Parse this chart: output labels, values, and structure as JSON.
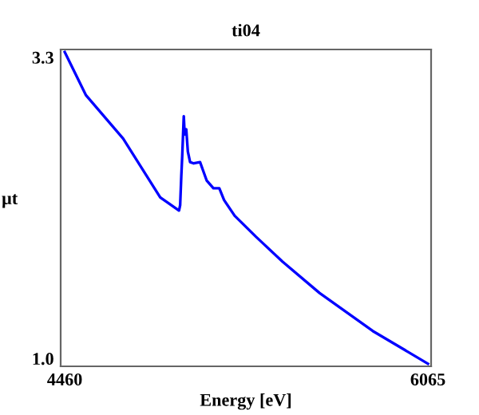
{
  "chart_data": {
    "type": "line",
    "title": "ti04",
    "xlabel": "Energy [eV]",
    "ylabel": "µt",
    "x": [
      4460,
      4554,
      4718,
      4882,
      4965,
      4970,
      4975,
      4979,
      4986,
      4990,
      4997,
      5004,
      5014,
      5030,
      5058,
      5087,
      5117,
      5143,
      5164,
      5211,
      5305,
      5422,
      5586,
      5821,
      6065
    ],
    "series": [
      {
        "color": "#0000ff",
        "values": [
          3.34,
          3.01,
          2.68,
          2.23,
          2.13,
          2.17,
          2.39,
          2.54,
          2.85,
          2.71,
          2.75,
          2.58,
          2.5,
          2.49,
          2.5,
          2.36,
          2.3,
          2.3,
          2.21,
          2.09,
          1.93,
          1.74,
          1.5,
          1.21,
          0.96
        ]
      }
    ],
    "xlim": [
      4442,
      6079
    ],
    "xticks": [
      4460,
      6065
    ],
    "ylim": [
      0.94,
      3.36
    ],
    "yticks": [
      {
        "value": 1.0,
        "label": "1.0"
      },
      3.3
    ],
    "grid": false,
    "legend": false,
    "marker": "none",
    "line_style": "solid"
  }
}
